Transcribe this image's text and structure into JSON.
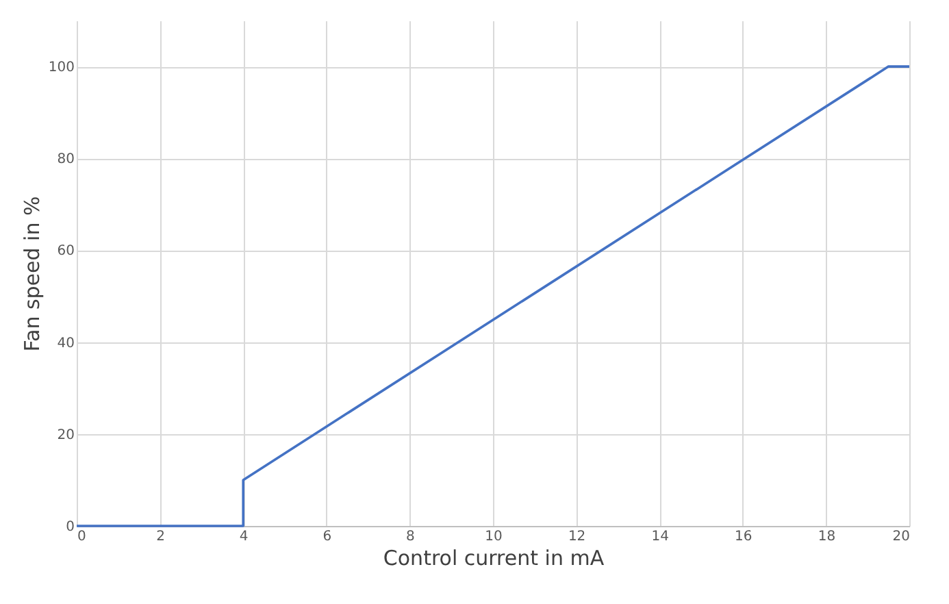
{
  "chart_data": {
    "type": "line",
    "xlabel": "Control current in mA",
    "ylabel": "Fan speed in %",
    "series": [
      {
        "color": "#4472c4",
        "x": [
          0,
          4,
          4,
          19.5,
          20
        ],
        "values": [
          0,
          0,
          10,
          100,
          100
        ]
      }
    ],
    "xlim": [
      0,
      20
    ],
    "xticks": [
      0,
      2,
      4,
      6,
      8,
      10,
      12,
      14,
      16,
      18,
      20
    ],
    "ylim": [
      0,
      110
    ],
    "yticks": [
      0,
      20,
      40,
      60,
      80,
      100
    ],
    "grid": true,
    "marker": "none",
    "line_style": "solid"
  }
}
